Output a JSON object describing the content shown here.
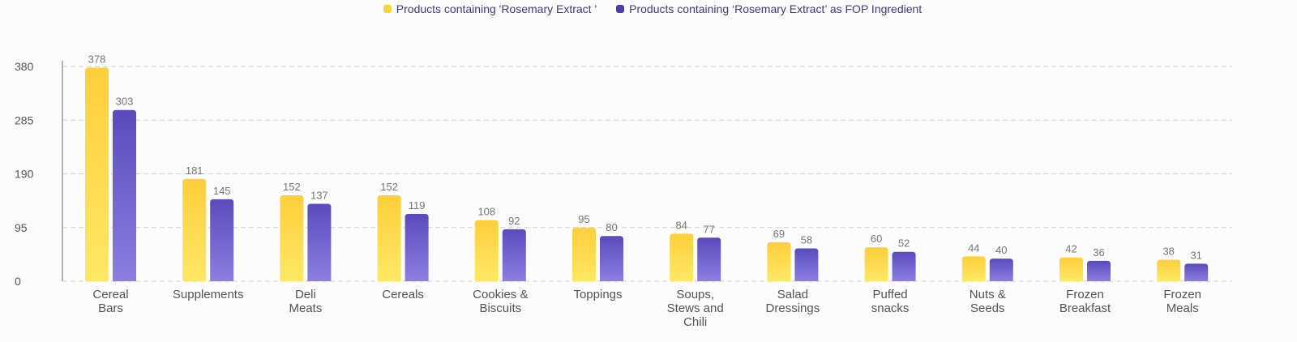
{
  "legend": {
    "series1": "Products containing 'Rosemary Extract '",
    "series2": "Products containing ‘Rosemary Extract’ as FOP Ingredient"
  },
  "colors": {
    "series1_top": "#ffce3b",
    "series1_bottom": "#ffe865",
    "series2_top": "#5a4bbd",
    "series2_bottom": "#8b7fe0",
    "grid": "#d0d0d0",
    "axis": "#9a9a9a"
  },
  "chart_data": {
    "type": "bar",
    "title": "",
    "xlabel": "",
    "ylabel": "",
    "ylim": [
      0,
      380
    ],
    "yticks": [
      "0",
      "95",
      "190",
      "285",
      "380"
    ],
    "categories": [
      [
        "Cereal",
        "Bars"
      ],
      [
        "Supplements"
      ],
      [
        "Deli",
        "Meats"
      ],
      [
        "Cereals"
      ],
      [
        "Cookies &",
        "Biscuits"
      ],
      [
        "Toppings"
      ],
      [
        "Soups,",
        "Stews and",
        "Chili"
      ],
      [
        "Salad",
        "Dressings"
      ],
      [
        "Puffed",
        "snacks"
      ],
      [
        "Nuts &",
        "Seeds"
      ],
      [
        "Frozen",
        "Breakfast"
      ],
      [
        "Frozen",
        "Meals"
      ]
    ],
    "series": [
      {
        "name": "Products containing 'Rosemary Extract '",
        "values": [
          378,
          181,
          152,
          152,
          108,
          95,
          84,
          69,
          60,
          44,
          42,
          38
        ]
      },
      {
        "name": "Products containing ‘Rosemary Extract’ as FOP Ingredient",
        "values": [
          303,
          145,
          137,
          119,
          92,
          80,
          77,
          58,
          52,
          40,
          36,
          31
        ]
      }
    ]
  }
}
